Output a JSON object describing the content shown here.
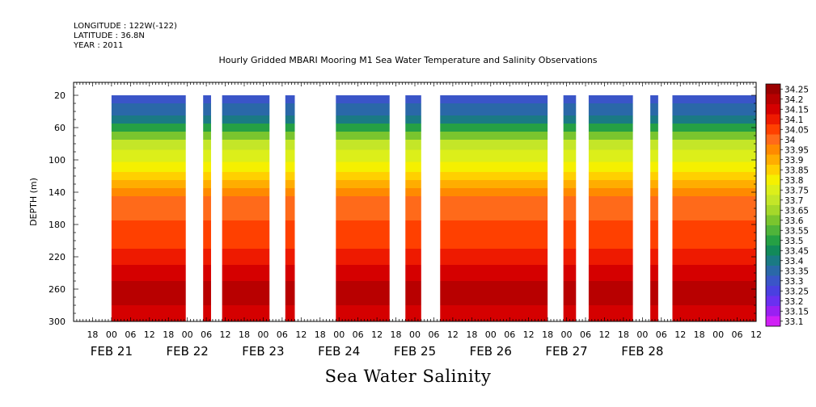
{
  "header": {
    "longitude": "LONGITUDE : 122W(-122)",
    "latitude": "LATITUDE : 36.8N",
    "year": "YEAR : 2011"
  },
  "chart_data": {
    "type": "heatmap",
    "title": "Hourly Gridded MBARI Mooring M1 Sea Water Temperature and Salinity Observations",
    "bottom_title": "Sea Water Salinity",
    "ylabel": "DEPTH (m)",
    "xlabel": "",
    "x_range_hours": [
      -12,
      204
    ],
    "ylim": [
      300,
      4
    ],
    "y_ticks": [
      20,
      60,
      100,
      140,
      180,
      220,
      260,
      300
    ],
    "x_minor_ticks": [
      {
        "hour": -6,
        "label": "18"
      },
      {
        "hour": 0,
        "label": "00"
      },
      {
        "hour": 6,
        "label": "06"
      },
      {
        "hour": 12,
        "label": "12"
      },
      {
        "hour": 18,
        "label": "18"
      },
      {
        "hour": 24,
        "label": "00"
      },
      {
        "hour": 30,
        "label": "06"
      },
      {
        "hour": 36,
        "label": "12"
      },
      {
        "hour": 42,
        "label": "18"
      },
      {
        "hour": 48,
        "label": "00"
      },
      {
        "hour": 54,
        "label": "06"
      },
      {
        "hour": 60,
        "label": "12"
      },
      {
        "hour": 66,
        "label": "18"
      },
      {
        "hour": 72,
        "label": "00"
      },
      {
        "hour": 78,
        "label": "06"
      },
      {
        "hour": 84,
        "label": "12"
      },
      {
        "hour": 90,
        "label": "18"
      },
      {
        "hour": 96,
        "label": "00"
      },
      {
        "hour": 102,
        "label": "06"
      },
      {
        "hour": 108,
        "label": "12"
      },
      {
        "hour": 114,
        "label": "18"
      },
      {
        "hour": 120,
        "label": "00"
      },
      {
        "hour": 126,
        "label": "06"
      },
      {
        "hour": 132,
        "label": "12"
      },
      {
        "hour": 138,
        "label": "18"
      },
      {
        "hour": 144,
        "label": "00"
      },
      {
        "hour": 150,
        "label": "06"
      },
      {
        "hour": 156,
        "label": "12"
      },
      {
        "hour": 162,
        "label": "18"
      },
      {
        "hour": 168,
        "label": "00"
      },
      {
        "hour": 174,
        "label": "06"
      },
      {
        "hour": 180,
        "label": "12"
      },
      {
        "hour": 186,
        "label": "18"
      },
      {
        "hour": 192,
        "label": "00"
      },
      {
        "hour": 198,
        "label": "06"
      },
      {
        "hour": 204,
        "label": "12"
      }
    ],
    "x_day_labels": [
      {
        "hour": 0,
        "label": "FEB 21"
      },
      {
        "hour": 24,
        "label": "FEB 22"
      },
      {
        "hour": 48,
        "label": "FEB 23"
      },
      {
        "hour": 72,
        "label": "FEB 24"
      },
      {
        "hour": 96,
        "label": "FEB 25"
      },
      {
        "hour": 120,
        "label": "FEB 26"
      },
      {
        "hour": 144,
        "label": "FEB 27"
      },
      {
        "hour": 168,
        "label": "FEB 28"
      }
    ],
    "data_segments_hours": [
      [
        0,
        23.5
      ],
      [
        29,
        31.5
      ],
      [
        35,
        50
      ],
      [
        55,
        58
      ],
      [
        71,
        88
      ],
      [
        93,
        98
      ],
      [
        104,
        138
      ],
      [
        143,
        147
      ],
      [
        151,
        165
      ],
      [
        170.5,
        173
      ],
      [
        177.5,
        210
      ]
    ],
    "depth_profile": [
      {
        "depth": 20,
        "salinity": 33.3
      },
      {
        "depth": 40,
        "salinity": 33.35
      },
      {
        "depth": 50,
        "salinity": 33.4
      },
      {
        "depth": 60,
        "salinity": 33.5
      },
      {
        "depth": 70,
        "salinity": 33.6
      },
      {
        "depth": 80,
        "salinity": 33.7
      },
      {
        "depth": 95,
        "salinity": 33.75
      },
      {
        "depth": 110,
        "salinity": 33.8
      },
      {
        "depth": 120,
        "salinity": 33.85
      },
      {
        "depth": 130,
        "salinity": 33.9
      },
      {
        "depth": 140,
        "salinity": 33.95
      },
      {
        "depth": 150,
        "salinity": 34.0
      },
      {
        "depth": 200,
        "salinity": 34.05
      },
      {
        "depth": 220,
        "salinity": 34.1
      },
      {
        "depth": 240,
        "salinity": 34.15
      },
      {
        "depth": 260,
        "salinity": 34.2
      },
      {
        "depth": 300,
        "salinity": 34.15
      }
    ],
    "legend": {
      "placement": "right",
      "levels": [
        {
          "label": "34.25",
          "color": "#9b0000"
        },
        {
          "label": "34.2",
          "color": "#b80000"
        },
        {
          "label": "34.15",
          "color": "#d50000"
        },
        {
          "label": "34.1",
          "color": "#ee1a00"
        },
        {
          "label": "34.05",
          "color": "#ff4000"
        },
        {
          "label": "34",
          "color": "#ff6a1a"
        },
        {
          "label": "33.95",
          "color": "#ff8a00"
        },
        {
          "label": "33.9",
          "color": "#ffad00"
        },
        {
          "label": "33.85",
          "color": "#ffd000"
        },
        {
          "label": "33.8",
          "color": "#f5f000"
        },
        {
          "label": "33.75",
          "color": "#dcef1a"
        },
        {
          "label": "33.7",
          "color": "#c4e628"
        },
        {
          "label": "33.65",
          "color": "#a5d82a"
        },
        {
          "label": "33.6",
          "color": "#7ac52e"
        },
        {
          "label": "33.55",
          "color": "#4fb43a"
        },
        {
          "label": "33.5",
          "color": "#25a044"
        },
        {
          "label": "33.45",
          "color": "#128a5a"
        },
        {
          "label": "33.4",
          "color": "#1a7a84"
        },
        {
          "label": "33.35",
          "color": "#2a68a8"
        },
        {
          "label": "33.3",
          "color": "#3a55c8"
        },
        {
          "label": "33.25",
          "color": "#4a40e0"
        },
        {
          "label": "33.2",
          "color": "#6a30f0"
        },
        {
          "label": "33.15",
          "color": "#9a20f2"
        },
        {
          "label": "33.1",
          "color": "#d020f5"
        }
      ]
    }
  }
}
